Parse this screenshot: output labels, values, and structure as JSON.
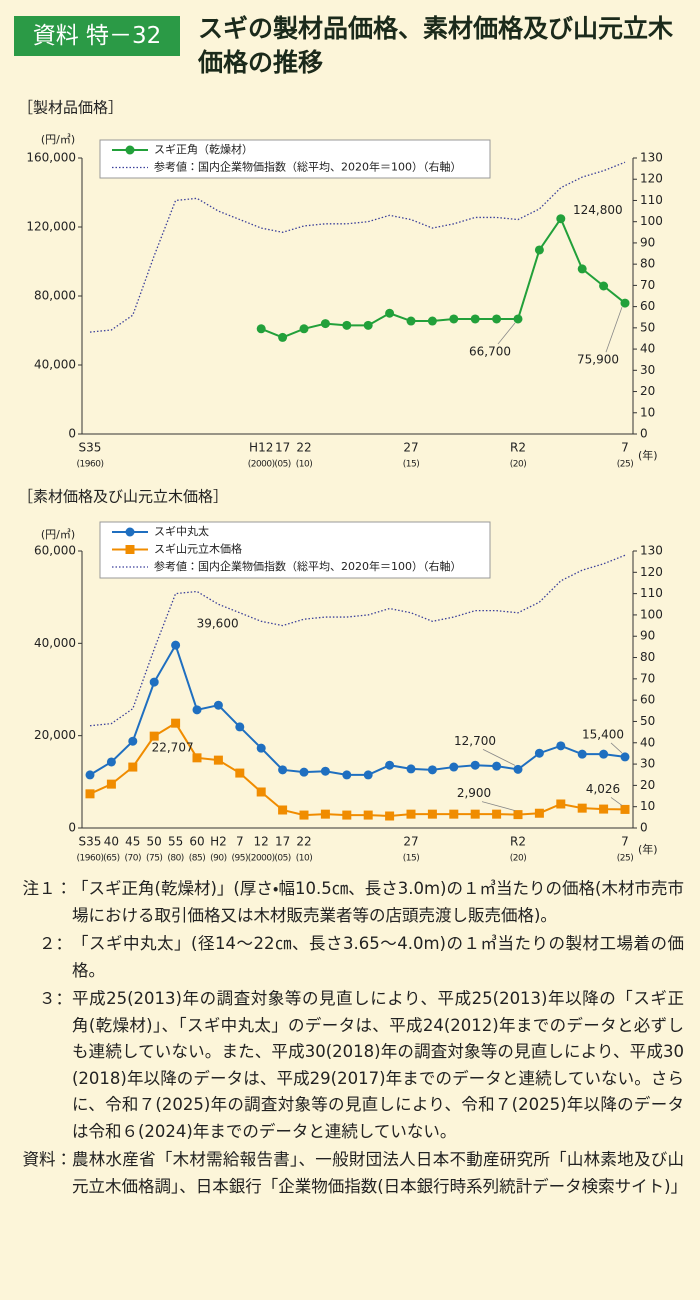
{
  "header": {
    "badge": "資料 特－32",
    "title": "スギの製材品価格、素材価格及び山元立木価格の推移"
  },
  "chart_data": [
    {
      "type": "line",
      "title": "［製材品価格］",
      "y_label": "(円/㎥)",
      "x_label": "(年)",
      "categories": [
        "S35",
        null,
        null,
        null,
        null,
        null,
        null,
        null,
        "H12",
        "17",
        "22",
        null,
        null,
        null,
        null,
        "27",
        null,
        null,
        null,
        null,
        "R2",
        null,
        null,
        null,
        null,
        "7"
      ],
      "category_years": [
        "(1960)",
        null,
        null,
        null,
        null,
        null,
        null,
        null,
        "(2000)",
        "(05)",
        "(10)",
        null,
        null,
        null,
        null,
        "(15)",
        null,
        null,
        null,
        null,
        "(20)",
        null,
        null,
        null,
        null,
        "(25)"
      ],
      "ylim": [
        0,
        160000
      ],
      "yticks": [
        0,
        {
          "value": 40000,
          "label": "40,000"
        },
        {
          "value": 80000,
          "label": "80,000"
        },
        {
          "value": 120000,
          "label": "120,000"
        },
        {
          "value": 160000,
          "label": "160,000"
        }
      ],
      "y2lim": [
        0,
        130
      ],
      "y2ticks": [
        0,
        10,
        20,
        30,
        40,
        50,
        60,
        70,
        80,
        90,
        100,
        110,
        120,
        130
      ],
      "series": [
        {
          "name": "スギ正角（乾燥材）",
          "color": "#22a03a",
          "marker": "circle",
          "values": [
            null,
            null,
            null,
            null,
            null,
            null,
            null,
            null,
            61000,
            56000,
            61000,
            64000,
            63000,
            63000,
            70000,
            65500,
            65500,
            66700,
            66700,
            66700,
            66700,
            106700,
            124800,
            95700,
            85800,
            75900
          ],
          "value_labels": [
            null,
            null,
            null,
            null,
            null,
            null,
            null,
            null,
            null,
            null,
            null,
            null,
            null,
            null,
            null,
            null,
            null,
            null,
            null,
            null,
            "66,700",
            null,
            "124,800",
            null,
            null,
            "75,900"
          ]
        },
        {
          "name": "参考値：国内企業物価指数（総平均、2020年＝100）（右軸）",
          "color": "#3a3f9a",
          "line_style": "dotted",
          "axis": "y2",
          "values": [
            48,
            49,
            56,
            84,
            110,
            111,
            105,
            101,
            97,
            95,
            98,
            99,
            99,
            100,
            103,
            101,
            97,
            99,
            102,
            102,
            101,
            106,
            116,
            121,
            124,
            128
          ]
        }
      ]
    },
    {
      "type": "line",
      "title": "［素材価格及び山元立木価格］",
      "y_label": "(円/㎥)",
      "x_label": "(年)",
      "categories": [
        "S35",
        "40",
        "45",
        "50",
        "55",
        "60",
        "H2",
        "7",
        "12",
        "17",
        "22",
        null,
        null,
        null,
        null,
        "27",
        null,
        null,
        null,
        null,
        "R2",
        null,
        null,
        null,
        null,
        "7"
      ],
      "category_years": [
        "(1960)",
        "(65)",
        "(70)",
        "(75)",
        "(80)",
        "(85)",
        "(90)",
        "(95)",
        "(2000)",
        "(05)",
        "(10)",
        null,
        null,
        null,
        null,
        "(15)",
        null,
        null,
        null,
        null,
        "(20)",
        null,
        null,
        null,
        null,
        "(25)"
      ],
      "ylim": [
        0,
        60000
      ],
      "yticks": [
        0,
        {
          "value": 20000,
          "label": "20,000"
        },
        {
          "value": 40000,
          "label": "40,000"
        },
        {
          "value": 60000,
          "label": "60,000"
        }
      ],
      "y2lim": [
        0,
        130
      ],
      "y2ticks": [
        0,
        10,
        20,
        30,
        40,
        50,
        60,
        70,
        80,
        90,
        100,
        110,
        120,
        130
      ],
      "series": [
        {
          "name": "スギ中丸太",
          "color": "#1f6fc0",
          "marker": "circle",
          "values": [
            11500,
            14300,
            18800,
            31600,
            39600,
            25600,
            26600,
            21900,
            17300,
            12600,
            12100,
            12300,
            11500,
            11500,
            13600,
            12800,
            12600,
            13200,
            13600,
            13400,
            12700,
            16200,
            17800,
            16000,
            16000,
            15400
          ],
          "value_labels": [
            null,
            null,
            null,
            null,
            "39,600",
            null,
            null,
            null,
            null,
            null,
            null,
            null,
            null,
            null,
            null,
            null,
            null,
            null,
            null,
            null,
            "12,700",
            null,
            null,
            null,
            null,
            "15,400"
          ]
        },
        {
          "name": "スギ山元立木価格",
          "color": "#f08c00",
          "marker": "square",
          "values": [
            7400,
            9500,
            13200,
            19900,
            22707,
            15200,
            14700,
            11900,
            7800,
            3900,
            2800,
            3000,
            2800,
            2800,
            2600,
            3000,
            3000,
            3000,
            3000,
            3000,
            2900,
            3200,
            5200,
            4300,
            4100,
            4026
          ],
          "value_labels": [
            null,
            null,
            null,
            null,
            "22,707",
            null,
            null,
            null,
            null,
            null,
            null,
            null,
            null,
            null,
            null,
            null,
            null,
            null,
            null,
            null,
            "2,900",
            null,
            null,
            null,
            null,
            "4,026"
          ]
        },
        {
          "name": "参考値：国内企業物価指数（総平均、2020年＝100）（右軸）",
          "color": "#3a3f9a",
          "line_style": "dotted",
          "axis": "y2",
          "values": [
            48,
            49,
            56,
            84,
            110,
            111,
            105,
            101,
            97,
            95,
            98,
            99,
            99,
            100,
            103,
            101,
            97,
            99,
            102,
            102,
            101,
            106,
            116,
            121,
            124,
            128
          ]
        }
      ]
    }
  ],
  "notes": [
    {
      "label": "注１：",
      "text": "「スギ正角(乾燥材)」(厚さ・幅10.5㎝、長さ3.0m)の１㎥当たりの価格(木材市売市場における取引価格又は木材販売業者等の店頭売渡し販売価格)。"
    },
    {
      "label": "２：",
      "text": "「スギ中丸太」(径14～22㎝、長さ3.65～4.0m)の１㎥当たりの製材工場着の価格。"
    },
    {
      "label": "３：",
      "text": "平成25(2013)年の調査対象等の見直しにより、平成25(2013)年以降の「スギ正角(乾燥材)」、「スギ中丸太」のデータは、平成24(2012)年までのデータと必ずしも連続していない。また、平成30(2018)年の調査対象等の見直しにより、平成30(2018)年以降のデータは、平成29(2017)年までのデータと連続していない。さらに、令和７(2025)年の調査対象等の見直しにより、令和７(2025)年以降のデータは令和６(2024)年までのデータと連続していない。"
    }
  ],
  "source": {
    "label": "資料：",
    "text": "農林水産省「木材需給報告書」、一般財団法人日本不動産研究所「山林素地及び山元立木価格調」、日本銀行「企業物価指数(日本銀行時系列統計データ検索サイト)」"
  }
}
